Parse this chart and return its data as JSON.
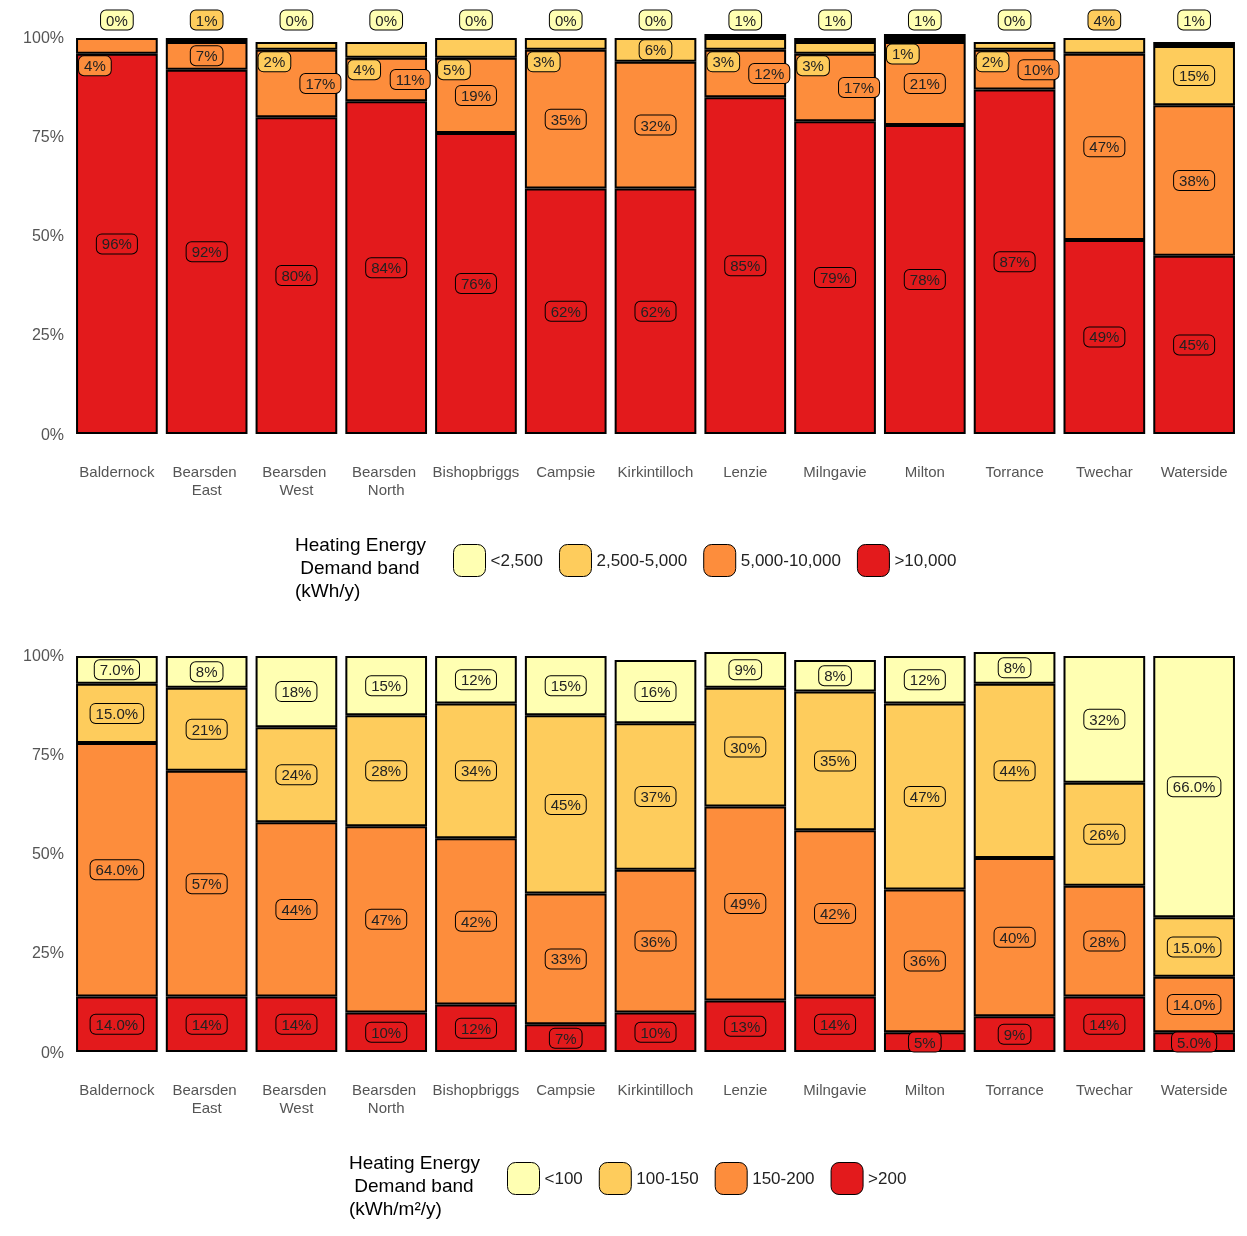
{
  "chart_data": [
    {
      "type": "bar",
      "stacked": true,
      "legend": "bottom",
      "legend_title": "Heating Energy Demand band (kWh/y)",
      "categories": [
        "Baldernock",
        "Bearsden East",
        "Bearsden West",
        "Bearsden North",
        "Bishopbriggs",
        "Campsie",
        "Kirkintilloch",
        "Lenzie",
        "Milngavie",
        "Milton",
        "Torrance",
        "Twechar",
        "Waterside"
      ],
      "ylim": [
        0,
        101
      ],
      "yticks": [
        {
          "value": 0,
          "label": "0%"
        },
        {
          "value": 25,
          "label": "25%"
        },
        {
          "value": 50,
          "label": "50%"
        },
        {
          "value": 75,
          "label": "75%"
        },
        {
          "value": 100,
          "label": "100%"
        }
      ],
      "series": [
        {
          "name": ">10,000",
          "color": "#e31a1c",
          "values": [
            96,
            92,
            80,
            84,
            76,
            62,
            62,
            85,
            79,
            78,
            87,
            49,
            45
          ],
          "value_labels": [
            "96%",
            "92%",
            "80%",
            "84%",
            "76%",
            "62%",
            "62%",
            "85%",
            "79%",
            "78%",
            "87%",
            "49%",
            "45%"
          ]
        },
        {
          "name": "5,000-10,000",
          "color": "#fd8d3c",
          "values": [
            4,
            7,
            17,
            11,
            19,
            35,
            32,
            12,
            17,
            21,
            10,
            47,
            38
          ],
          "value_labels": [
            "4%",
            "7%",
            "17%",
            "11%",
            "19%",
            "35%",
            "32%",
            "12%",
            "17%",
            "21%",
            "10%",
            "47%",
            "38%"
          ]
        },
        {
          "name": "2,500-5,000",
          "color": "#fecc5c",
          "values": [
            null,
            1,
            2,
            4,
            5,
            3,
            6,
            3,
            3,
            1,
            2,
            4,
            15
          ],
          "value_labels": [
            null,
            "1%",
            "2%",
            "4%",
            "5%",
            "3%",
            "6%",
            "3%",
            "3%",
            "1%",
            "2%",
            "4%",
            "15%"
          ]
        },
        {
          "name": "<2,500",
          "color": "#ffffb2",
          "values": [
            0,
            null,
            0,
            0,
            0,
            0,
            0,
            1,
            1,
            1,
            0,
            null,
            1
          ],
          "value_labels": [
            "0%",
            null,
            "0%",
            "0%",
            "0%",
            "0%",
            "0%",
            "1%",
            "1%",
            "1%",
            "0%",
            null,
            "1%"
          ]
        }
      ]
    },
    {
      "type": "bar",
      "stacked": true,
      "legend": "bottom",
      "legend_title": "Heating Energy Demand band (kWh/m²/y)",
      "categories": [
        "Baldernock",
        "Bearsden East",
        "Bearsden West",
        "Bearsden North",
        "Bishopbriggs",
        "Campsie",
        "Kirkintilloch",
        "Lenzie",
        "Milngavie",
        "Milton",
        "Torrance",
        "Twechar",
        "Waterside"
      ],
      "ylim": [
        0,
        101
      ],
      "yticks": [
        {
          "value": 0,
          "label": "0%"
        },
        {
          "value": 25,
          "label": "25%"
        },
        {
          "value": 50,
          "label": "50%"
        },
        {
          "value": 75,
          "label": "75%"
        },
        {
          "value": 100,
          "label": "100%"
        }
      ],
      "series": [
        {
          "name": ">200",
          "color": "#e31a1c",
          "values": [
            14.0,
            14,
            14,
            10,
            12,
            7,
            10,
            13,
            14,
            5,
            9,
            14,
            5.0
          ],
          "value_labels": [
            "14.0%",
            "14%",
            "14%",
            "10%",
            "12%",
            "7%",
            "10%",
            "13%",
            "14%",
            "5%",
            "9%",
            "14%",
            "5.0%"
          ]
        },
        {
          "name": "150-200",
          "color": "#fd8d3c",
          "values": [
            64.0,
            57,
            44,
            47,
            42,
            33,
            36,
            49,
            42,
            36,
            40,
            28,
            14.0
          ],
          "value_labels": [
            "64.0%",
            "57%",
            "44%",
            "47%",
            "42%",
            "33%",
            "36%",
            "49%",
            "42%",
            "36%",
            "40%",
            "28%",
            "14.0%"
          ]
        },
        {
          "name": "100-150",
          "color": "#fecc5c",
          "values": [
            15.0,
            21,
            24,
            28,
            34,
            45,
            37,
            30,
            35,
            47,
            44,
            26,
            15.0
          ],
          "value_labels": [
            "15.0%",
            "21%",
            "24%",
            "28%",
            "34%",
            "45%",
            "37%",
            "30%",
            "35%",
            "47%",
            "44%",
            "26%",
            "15.0%"
          ]
        },
        {
          "name": "<100",
          "color": "#ffffb2",
          "values": [
            7.0,
            8,
            18,
            15,
            12,
            15,
            16,
            9,
            8,
            12,
            8,
            32,
            66.0
          ],
          "value_labels": [
            "7.0%",
            "8%",
            "18%",
            "15%",
            "12%",
            "15%",
            "16%",
            "9%",
            "8%",
            "12%",
            "8%",
            "32%",
            "66.0%"
          ]
        }
      ]
    }
  ]
}
